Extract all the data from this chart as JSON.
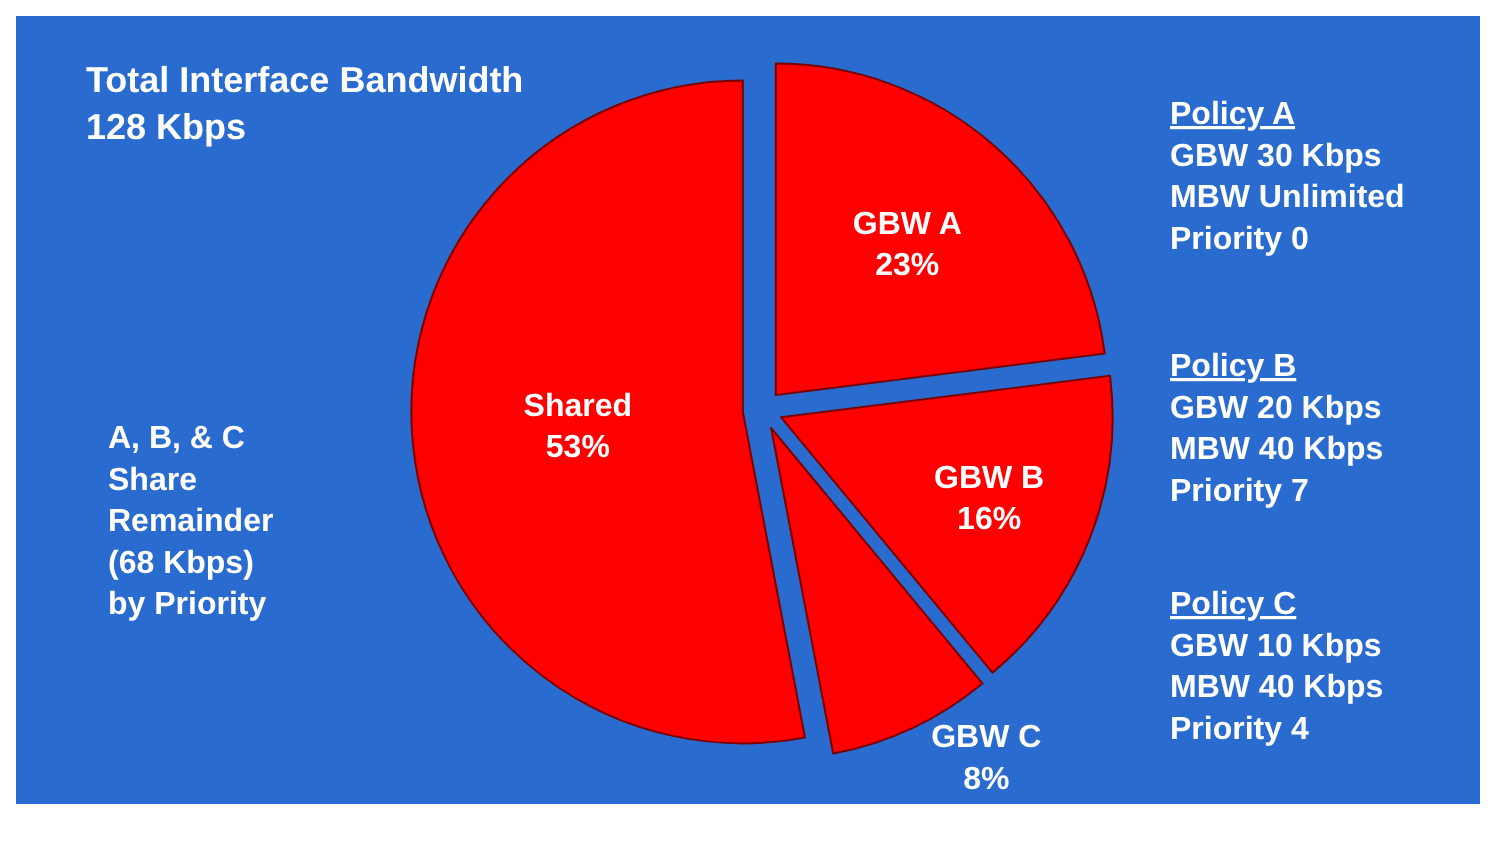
{
  "chart_data": {
    "type": "pie",
    "title": "Total Interface Bandwidth\n128 Kbps",
    "categories": [
      "GBW A",
      "GBW B",
      "GBW C",
      "Shared"
    ],
    "values": [
      23,
      16,
      8,
      53
    ],
    "value_labels": [
      "23%",
      "16%",
      "8%",
      "53%"
    ],
    "colors": [
      "#ff0000",
      "#ff0000",
      "#ff0000",
      "#ff0000"
    ],
    "annotations": [
      "A, B, & C\nShare\nRemainder\n(68 Kbps)\nby Priority",
      "Policy A\nGBW 30 Kbps\nMBW Unlimited\nPriority 0",
      "Policy B\nGBW 20 Kbps\nMBW 40 Kbps\nPriority 7",
      "Policy C\nGBW 10 Kbps\nMBW 40 Kbps\nPriority 4"
    ]
  }
}
